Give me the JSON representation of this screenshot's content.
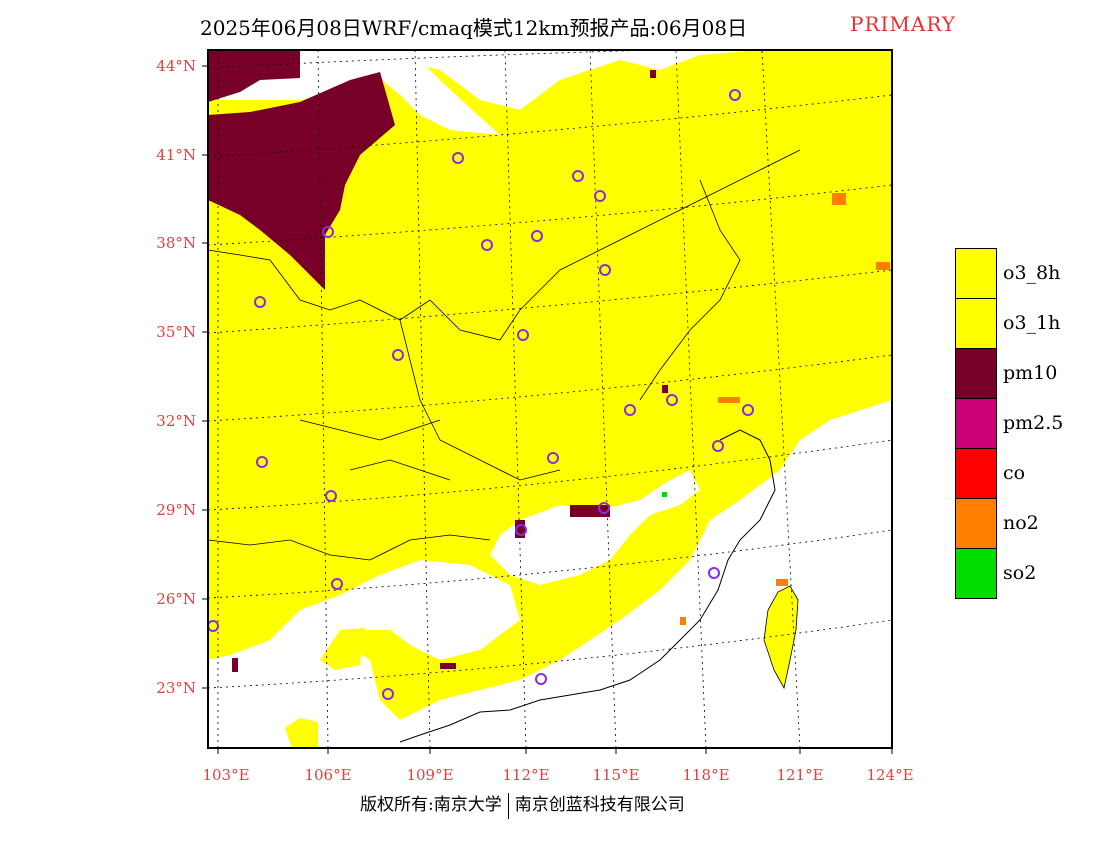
{
  "title": {
    "main": "2025年06月08日WRF/cmaq模式12km预报产品:06月08日",
    "tag": "PRIMARY"
  },
  "axes": {
    "lat_labels": [
      "44°N",
      "41°N",
      "38°N",
      "35°N",
      "32°N",
      "29°N",
      "26°N",
      "23°N"
    ],
    "lon_labels": [
      "103°E",
      "106°E",
      "109°E",
      "112°E",
      "115°E",
      "118°E",
      "121°E",
      "124°E"
    ]
  },
  "legend": {
    "items": [
      {
        "label": "o3_8h",
        "color": "#ffff00"
      },
      {
        "label": "o3_1h",
        "color": "#ffff00"
      },
      {
        "label": "pm10",
        "color": "#780028"
      },
      {
        "label": "pm2.5",
        "color": "#cc0077"
      },
      {
        "label": "co",
        "color": "#ff0000"
      },
      {
        "label": "no2",
        "color": "#ff7f00"
      },
      {
        "label": "so2",
        "color": "#00dd00"
      }
    ]
  },
  "footer": {
    "left": "版权所有:南京大学",
    "right": "南京创蓝科技有限公司"
  },
  "colors": {
    "o3": "#ffff00",
    "pm10": "#780028",
    "no2": "#ff7f00",
    "station": "#8a2be2",
    "tick": "#e04040"
  }
}
